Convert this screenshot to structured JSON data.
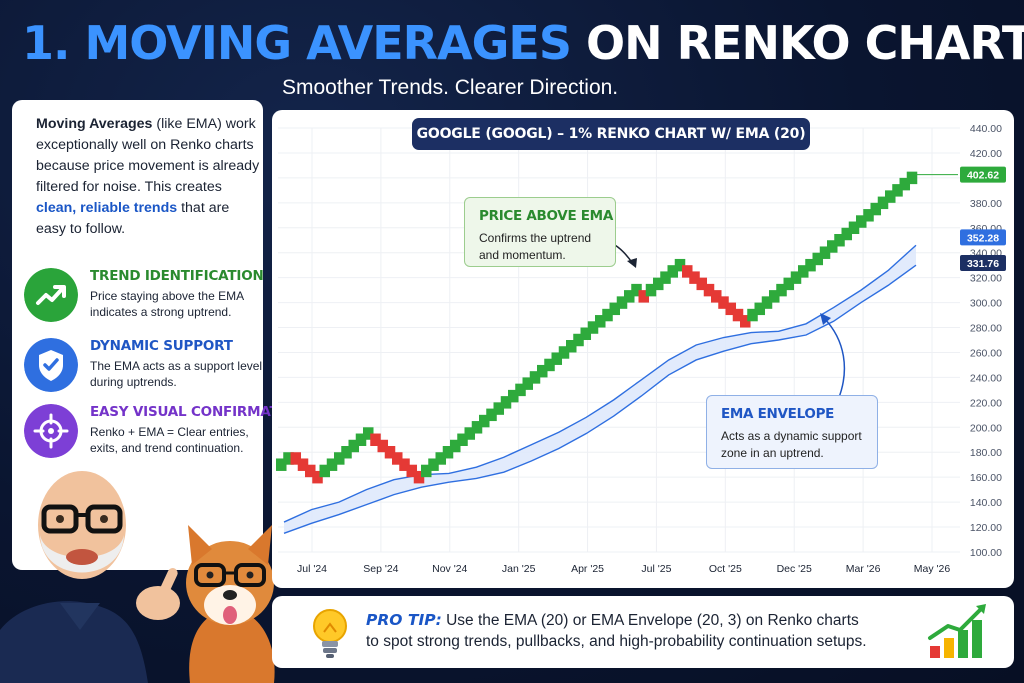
{
  "header": {
    "title_accent": "1. MOVING AVERAGES",
    "title_rest": " ON RENKO CHARTS",
    "subtitle": "Smoother Trends. Clearer Direction."
  },
  "intro": {
    "bold": "Moving Averages",
    "part1": " (like EMA) work exceptionally well on Renko charts because price movement is already filtered for noise. This creates ",
    "highlight": "clean, reliable trends",
    "part2": " that are easy to follow."
  },
  "features": [
    {
      "title": "TREND IDENTIFICATION",
      "desc": "Price staying above the EMA indicates a strong uptrend.",
      "icon": "trend-up-icon",
      "color": "#2aa43a",
      "title_color": "#2a8a2e"
    },
    {
      "title": "DYNAMIC SUPPORT",
      "desc": "The EMA acts as a support level during uptrends.",
      "icon": "shield-check-icon",
      "color": "#2f6fe0",
      "title_color": "#1f56c4"
    },
    {
      "title": "EASY VISUAL CONFIRMATION",
      "desc": "Renko + EMA = Clear entries, exits, and trend continuation.",
      "icon": "crosshair-icon",
      "color": "#7d3fd6",
      "title_color": "#7433c9"
    }
  ],
  "chart_title": "GOOGLE (GOOGL) – 1% RENKO CHART W/ EMA (20)",
  "callouts": {
    "price_above": {
      "title": "PRICE ABOVE EMA",
      "text1": "Confirms the uptrend",
      "text2": "and momentum.",
      "title_color": "#2a8a2e"
    },
    "envelope": {
      "title": "EMA ENVELOPE",
      "text1": "Acts as a dynamic support",
      "text2": "zone in an uptrend.",
      "title_color": "#1f56c4"
    }
  },
  "tip": {
    "label": "PRO TIP:",
    "line1": " Use the EMA (20) or EMA Envelope (20, 3) on Renko charts",
    "line2": "to spot strong trends, pullbacks, and high-probability continuation setups."
  },
  "colors": {
    "up": "#2eaa3c",
    "down": "#e53935",
    "ema": "#2f6fe0",
    "envelope_fill": "#dde8fb",
    "accent": "#3b93ff"
  },
  "chart_data": {
    "type": "renko",
    "title": "GOOGLE (GOOGL) – 1% RENKO CHART W/ EMA (20)",
    "x_ticks": [
      "Jul '24",
      "Sep '24",
      "Nov '24",
      "Jan '25",
      "Apr '25",
      "Jul '25",
      "Oct '25",
      "Dec '25",
      "Mar '26",
      "May '26"
    ],
    "y_ticks": [
      "100.00",
      "120.00",
      "140.00",
      "160.00",
      "180.00",
      "200.00",
      "220.00",
      "240.00",
      "260.00",
      "280.00",
      "300.00",
      "320.00",
      "340.00",
      "360.00",
      "380.00",
      "400.00",
      "420.00",
      "440.00"
    ],
    "ylim": [
      100,
      440
    ],
    "brick_size_percent": 1,
    "price_labels": [
      {
        "text": "402.62",
        "value": 402.62,
        "color": "#2eaa3c"
      },
      {
        "text": "352.28",
        "value": 352.28,
        "color": "#2f6fe0"
      },
      {
        "text": "331.76",
        "value": 331.76,
        "color": "#1c2f63"
      }
    ],
    "bricks": [
      {
        "dir": "up",
        "top": 175
      },
      {
        "dir": "up",
        "top": 180
      },
      {
        "dir": "down",
        "top": 180
      },
      {
        "dir": "down",
        "top": 175
      },
      {
        "dir": "down",
        "top": 170
      },
      {
        "dir": "down",
        "top": 165
      },
      {
        "dir": "up",
        "top": 170
      },
      {
        "dir": "up",
        "top": 175
      },
      {
        "dir": "up",
        "top": 180
      },
      {
        "dir": "up",
        "top": 185
      },
      {
        "dir": "up",
        "top": 190
      },
      {
        "dir": "up",
        "top": 195
      },
      {
        "dir": "up",
        "top": 200
      },
      {
        "dir": "down",
        "top": 195
      },
      {
        "dir": "down",
        "top": 190
      },
      {
        "dir": "down",
        "top": 185
      },
      {
        "dir": "down",
        "top": 180
      },
      {
        "dir": "down",
        "top": 175
      },
      {
        "dir": "down",
        "top": 170
      },
      {
        "dir": "down",
        "top": 165
      },
      {
        "dir": "up",
        "top": 170
      },
      {
        "dir": "up",
        "top": 175
      },
      {
        "dir": "up",
        "top": 180
      },
      {
        "dir": "up",
        "top": 185
      },
      {
        "dir": "up",
        "top": 190
      },
      {
        "dir": "up",
        "top": 195
      },
      {
        "dir": "up",
        "top": 200
      },
      {
        "dir": "up",
        "top": 205
      },
      {
        "dir": "up",
        "top": 210
      },
      {
        "dir": "up",
        "top": 215
      },
      {
        "dir": "up",
        "top": 220
      },
      {
        "dir": "up",
        "top": 225
      },
      {
        "dir": "up",
        "top": 230
      },
      {
        "dir": "up",
        "top": 235
      },
      {
        "dir": "up",
        "top": 240
      },
      {
        "dir": "up",
        "top": 245
      },
      {
        "dir": "up",
        "top": 250
      },
      {
        "dir": "up",
        "top": 255
      },
      {
        "dir": "up",
        "top": 260
      },
      {
        "dir": "up",
        "top": 265
      },
      {
        "dir": "up",
        "top": 270
      },
      {
        "dir": "up",
        "top": 275
      },
      {
        "dir": "up",
        "top": 280
      },
      {
        "dir": "up",
        "top": 285
      },
      {
        "dir": "up",
        "top": 290
      },
      {
        "dir": "up",
        "top": 295
      },
      {
        "dir": "up",
        "top": 300
      },
      {
        "dir": "up",
        "top": 305
      },
      {
        "dir": "up",
        "top": 310
      },
      {
        "dir": "up",
        "top": 315
      },
      {
        "dir": "down",
        "top": 310
      },
      {
        "dir": "up",
        "top": 315
      },
      {
        "dir": "up",
        "top": 320
      },
      {
        "dir": "up",
        "top": 325
      },
      {
        "dir": "up",
        "top": 330
      },
      {
        "dir": "up",
        "top": 335
      },
      {
        "dir": "down",
        "top": 330
      },
      {
        "dir": "down",
        "top": 325
      },
      {
        "dir": "down",
        "top": 320
      },
      {
        "dir": "down",
        "top": 315
      },
      {
        "dir": "down",
        "top": 310
      },
      {
        "dir": "down",
        "top": 305
      },
      {
        "dir": "down",
        "top": 300
      },
      {
        "dir": "down",
        "top": 295
      },
      {
        "dir": "down",
        "top": 290
      },
      {
        "dir": "up",
        "top": 295
      },
      {
        "dir": "up",
        "top": 300
      },
      {
        "dir": "up",
        "top": 305
      },
      {
        "dir": "up",
        "top": 310
      },
      {
        "dir": "up",
        "top": 315
      },
      {
        "dir": "up",
        "top": 320
      },
      {
        "dir": "up",
        "top": 325
      },
      {
        "dir": "up",
        "top": 330
      },
      {
        "dir": "up",
        "top": 335
      },
      {
        "dir": "up",
        "top": 340
      },
      {
        "dir": "up",
        "top": 345
      },
      {
        "dir": "up",
        "top": 350
      },
      {
        "dir": "up",
        "top": 355
      },
      {
        "dir": "up",
        "top": 360
      },
      {
        "dir": "up",
        "top": 365
      },
      {
        "dir": "up",
        "top": 370
      },
      {
        "dir": "up",
        "top": 375
      },
      {
        "dir": "up",
        "top": 380
      },
      {
        "dir": "up",
        "top": 385
      },
      {
        "dir": "up",
        "top": 390
      },
      {
        "dir": "up",
        "top": 395
      },
      {
        "dir": "up",
        "top": 400
      },
      {
        "dir": "up",
        "top": 405
      }
    ],
    "ema_upper": [
      124,
      134,
      140,
      150,
      158,
      162,
      163,
      168,
      176,
      186,
      196,
      208,
      222,
      238,
      254,
      266,
      272,
      276,
      277,
      283,
      296,
      310,
      326,
      346
    ],
    "ema_lower": [
      115,
      123,
      130,
      138,
      146,
      152,
      156,
      159,
      164,
      173,
      183,
      195,
      209,
      225,
      242,
      254,
      261,
      267,
      270,
      274,
      285,
      300,
      314,
      330
    ],
    "grid": true
  }
}
